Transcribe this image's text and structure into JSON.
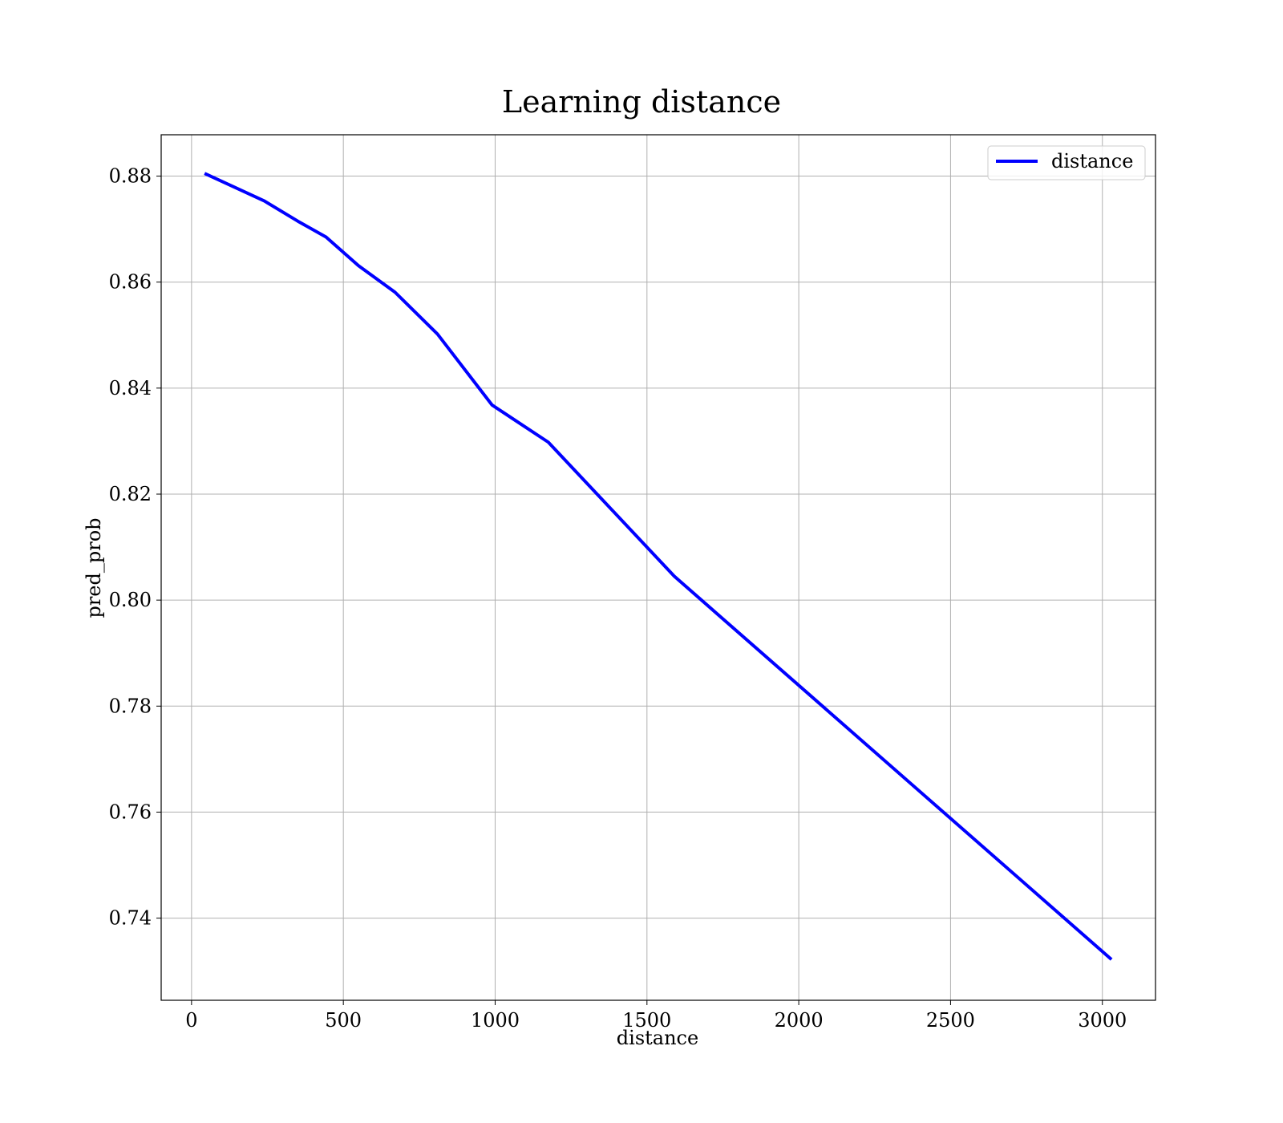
{
  "chart_data": {
    "type": "line",
    "title": "Learning distance",
    "xlabel": "distance",
    "ylabel": "pred_prob",
    "xlim": [
      -100,
      3175
    ],
    "ylim": [
      0.7245,
      0.8878
    ],
    "xticks": [
      0,
      500,
      1000,
      1500,
      2000,
      2500,
      3000
    ],
    "yticks": [
      0.74,
      0.76,
      0.78,
      0.8,
      0.82,
      0.84,
      0.86,
      0.88
    ],
    "xtick_labels": [
      "0",
      "500",
      "1000",
      "1500",
      "2000",
      "2500",
      "3000"
    ],
    "ytick_labels": [
      "0.74",
      "0.76",
      "0.78",
      "0.80",
      "0.82",
      "0.84",
      "0.86",
      "0.88"
    ],
    "grid": true,
    "legend_position": "top-right",
    "series": [
      {
        "name": "distance",
        "color": "#0000ff",
        "x": [
          43,
          240,
          350,
          443,
          550,
          670,
          810,
          990,
          1175,
          1590,
          3030
        ],
        "y": [
          0.8805,
          0.8753,
          0.8715,
          0.8685,
          0.8631,
          0.8581,
          0.8502,
          0.8368,
          0.8298,
          0.8045,
          0.7322
        ]
      }
    ]
  }
}
